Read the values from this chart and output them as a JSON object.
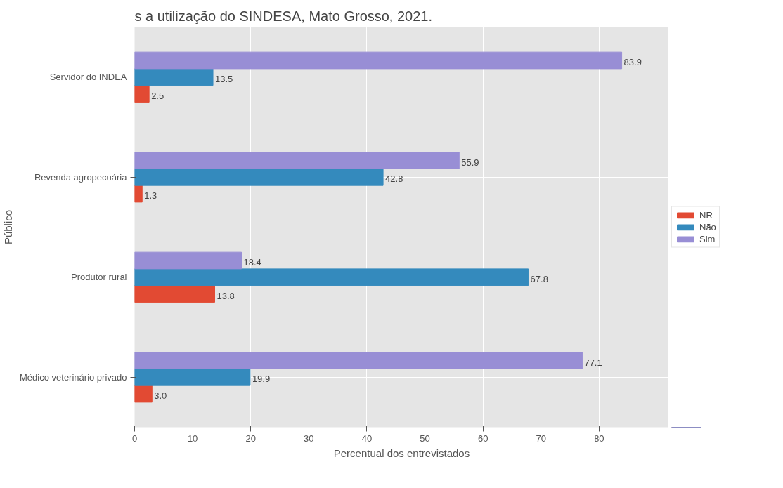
{
  "chart_data": {
    "type": "bar",
    "orientation": "horizontal",
    "title": "s a utilização do SINDESA, Mato Grosso, 2021.",
    "xlabel": "Percentual dos entrevistados",
    "ylabel": "Público",
    "categories": [
      "Servidor do INDEA",
      "Revenda agropecuária",
      "Produtor rural",
      "Médico veterinário privado"
    ],
    "series": [
      {
        "name": "NR",
        "color": "#e24a33",
        "values": [
          2.5,
          1.3,
          13.8,
          3.0
        ],
        "value_labels": [
          "2.5",
          "1.3",
          "13.8",
          "3.0"
        ]
      },
      {
        "name": "Não",
        "color": "#348abd",
        "values": [
          13.5,
          42.8,
          67.8,
          19.9
        ]
      },
      {
        "name": "Sim",
        "color": "#988ed5",
        "values": [
          83.9,
          55.9,
          18.4,
          77.1
        ]
      }
    ],
    "xlim": [
      0,
      92
    ],
    "xticks": [
      0,
      10,
      20,
      30,
      40,
      50,
      60,
      70,
      80
    ],
    "grid": true,
    "legend": "right",
    "data_labels": true
  }
}
